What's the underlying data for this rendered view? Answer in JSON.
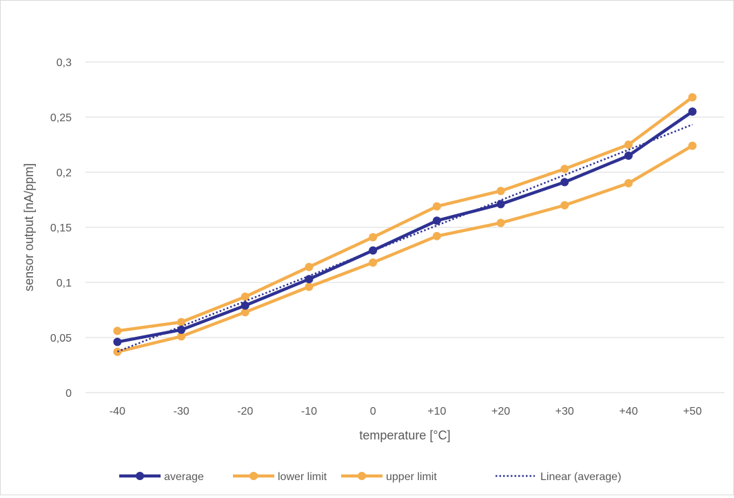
{
  "chart_data": {
    "type": "line",
    "title": "",
    "xlabel": "temperature [°C]",
    "ylabel": "sensor output [nA/ppm]",
    "categories": [
      "-40",
      "-30",
      "-20",
      "-10",
      "0",
      "+10",
      "+20",
      "+30",
      "+40",
      "+50"
    ],
    "x_values": [
      -40,
      -30,
      -20,
      -10,
      0,
      10,
      20,
      30,
      40,
      50
    ],
    "ylim": [
      0,
      0.3
    ],
    "y_ticks": [
      0,
      0.05,
      0.1,
      0.15,
      0.2,
      0.25,
      0.3
    ],
    "y_tick_labels": [
      "0",
      "0,05",
      "0,1",
      "0,15",
      "0,2",
      "0,25",
      "0,3"
    ],
    "grid": "horizontal",
    "legend_position": "bottom",
    "series": [
      {
        "name": "average",
        "color": "#2E3192",
        "style": "solid-markers",
        "values": [
          0.046,
          0.057,
          0.079,
          0.103,
          0.129,
          0.156,
          0.171,
          0.191,
          0.215,
          0.255
        ]
      },
      {
        "name": "lower limit",
        "color": "#F4AE4D",
        "style": "solid-markers",
        "values": [
          0.037,
          0.051,
          0.073,
          0.096,
          0.118,
          0.142,
          0.154,
          0.17,
          0.19,
          0.224
        ]
      },
      {
        "name": "upper limit",
        "color": "#F4AE4D",
        "style": "solid-markers",
        "values": [
          0.056,
          0.064,
          0.087,
          0.114,
          0.141,
          0.169,
          0.183,
          0.203,
          0.225,
          0.268
        ]
      },
      {
        "name": "Linear (average)",
        "color": "#2E3192",
        "style": "dotted",
        "trendline_of": "average"
      }
    ]
  }
}
